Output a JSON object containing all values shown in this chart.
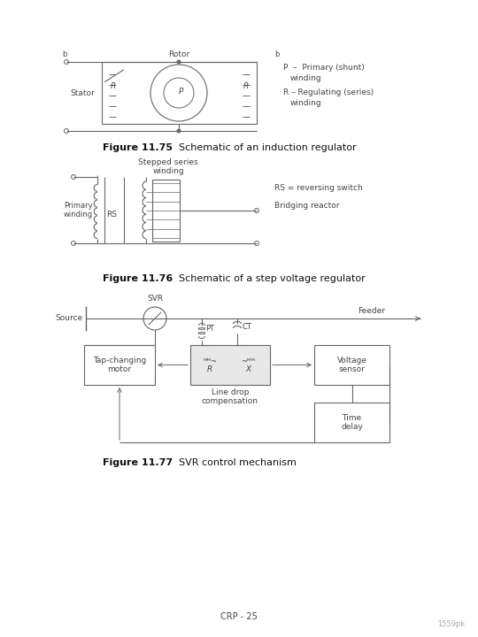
{
  "bg_color": "#ffffff",
  "fig_width": 5.4,
  "fig_height": 7.2,
  "dpi": 100,
  "fig75_title_bold": "Figure 11.75",
  "fig75_title_normal": "  Schematic of an induction regulator",
  "fig76_title_bold": "Figure 11.76",
  "fig76_title_normal": "  Schematic of a step voltage regulator",
  "fig77_title_bold": "Figure 11.77",
  "fig77_title_normal": "  SVR control mechanism",
  "page_label": "CRP - 25",
  "watermark": "1559pk",
  "text_color": "#444444",
  "line_color": "#666666",
  "fig75_p_legend1": "P  –  Primary (shunt)",
  "fig75_p_legend2": "winding",
  "fig75_r_legend1": "R – Regulating (series)",
  "fig75_r_legend2": "winding",
  "fig75_b1": "b",
  "fig75_b2": "b",
  "fig76_rs_legend": "RS = reversing switch",
  "fig76_br_legend": "Bridging reactor",
  "fig77_source": "Source",
  "fig77_feeder": "Feeder",
  "fig77_svr": "SVR",
  "fig77_pt": "PT",
  "fig77_ct": "CT",
  "fig77_box1": "Tap-changing\nmotor",
  "fig77_box2_label": "Line drop\ncompensation",
  "fig77_box2_r": "R",
  "fig77_box2_x": "X",
  "fig77_box3": "Voltage\nsensor",
  "fig77_box4": "Time\ndelay"
}
